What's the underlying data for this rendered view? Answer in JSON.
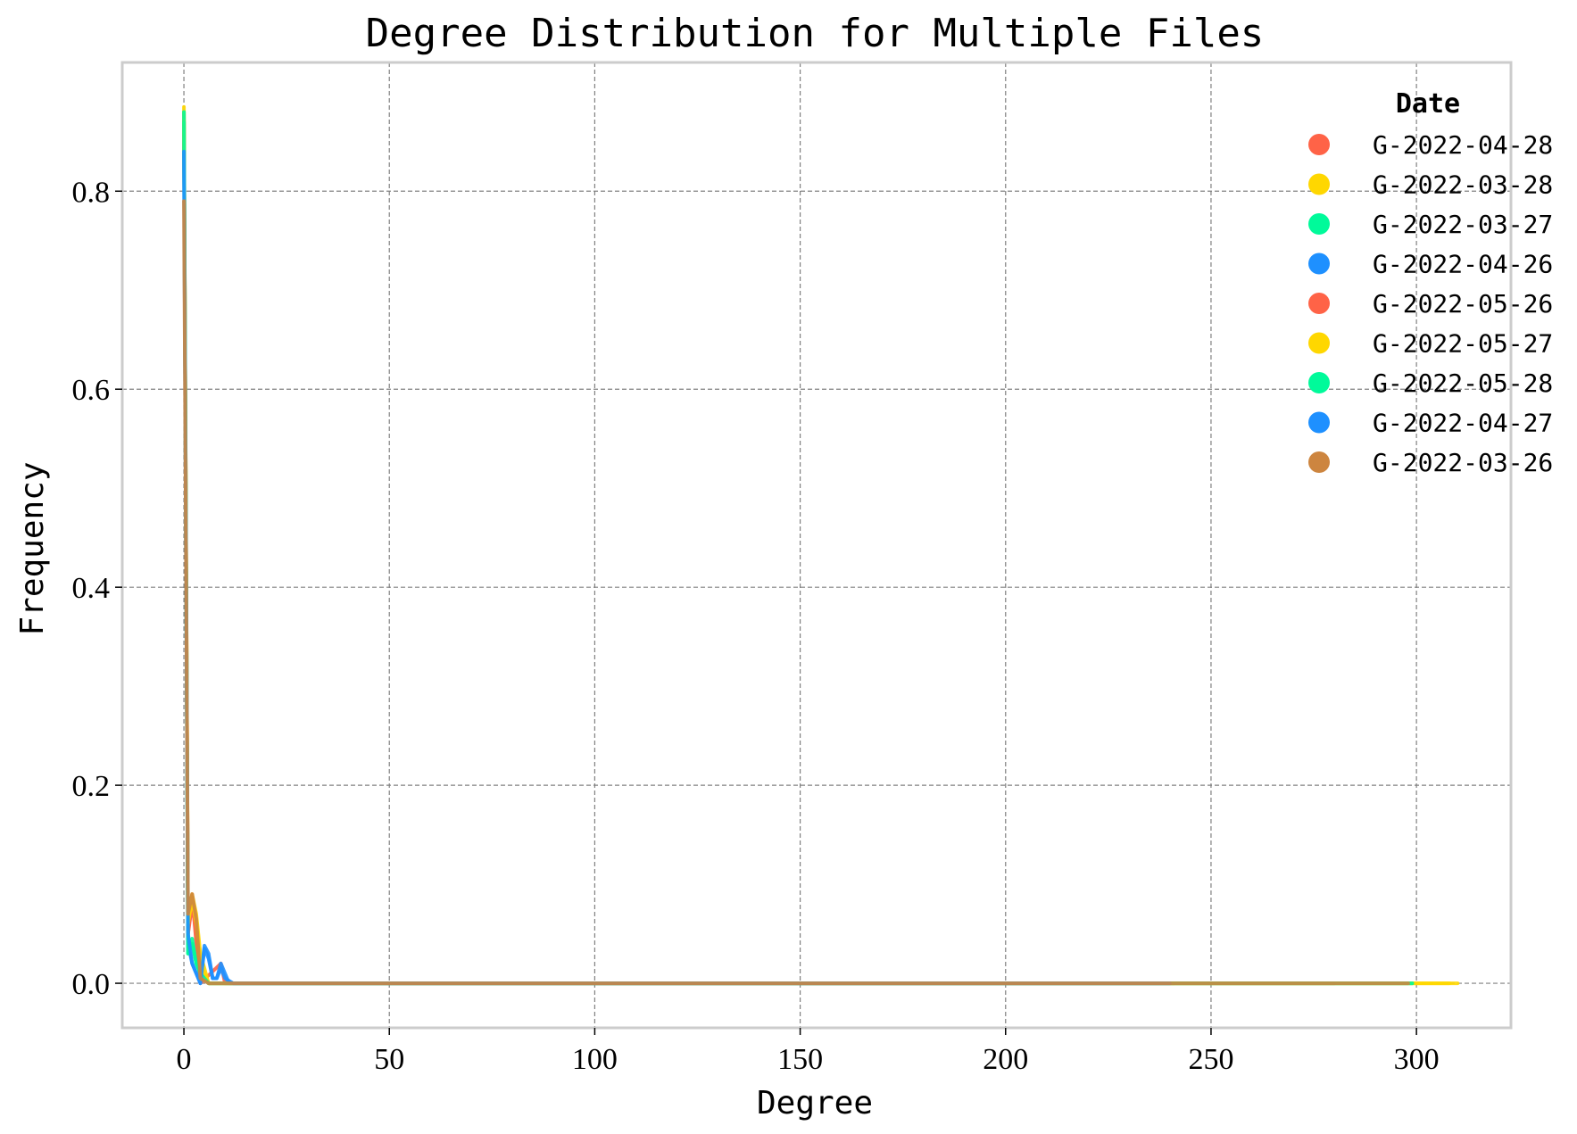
{
  "chart_data": {
    "type": "line",
    "title": "Degree Distribution for Multiple Files",
    "xlabel": "Degree",
    "ylabel": "Frequency",
    "xlim": [
      -15,
      323
    ],
    "ylim": [
      -0.045,
      0.93
    ],
    "xticks": [
      0,
      50,
      100,
      150,
      200,
      250,
      300
    ],
    "yticks": [
      0.0,
      0.2,
      0.4,
      0.6,
      0.8
    ],
    "xtick_labels": [
      "0",
      "50",
      "100",
      "150",
      "200",
      "250",
      "300"
    ],
    "ytick_labels": [
      "0.0",
      "0.2",
      "0.4",
      "0.6",
      "0.8"
    ],
    "grid": true,
    "legend": {
      "title": "Date",
      "position": "top-right"
    },
    "series": [
      {
        "name": "G-2022-04-28",
        "color": "#FF6347",
        "x": [
          0,
          1,
          2,
          3,
          4,
          9,
          10,
          12,
          60,
          120,
          200,
          241
        ],
        "y": [
          0.88,
          0.05,
          0.09,
          0.04,
          0.0,
          0.02,
          0.0,
          0.0,
          0.0,
          0.0,
          0.0,
          0.0
        ]
      },
      {
        "name": "G-2022-03-28",
        "color": "#FFD700",
        "x": [
          0,
          1,
          2,
          3,
          4,
          6,
          20,
          100,
          200,
          300,
          310
        ],
        "y": [
          0.885,
          0.06,
          0.09,
          0.07,
          0.03,
          0.0,
          0.0,
          0.0,
          0.0,
          0.0,
          0.0
        ]
      },
      {
        "name": "G-2022-03-27",
        "color": "#00FA9A",
        "x": [
          0,
          1,
          2,
          3,
          4,
          6,
          20,
          100,
          200,
          299
        ],
        "y": [
          0.88,
          0.03,
          0.045,
          0.02,
          0.01,
          0.0,
          0.0,
          0.0,
          0.0,
          0.0
        ]
      },
      {
        "name": "G-2022-04-26",
        "color": "#1E90FF",
        "x": [
          0,
          1,
          2,
          3,
          4,
          5,
          6,
          7,
          8,
          9,
          10,
          11,
          12,
          30,
          100,
          200,
          240
        ],
        "y": [
          0.85,
          0.04,
          0.02,
          0.01,
          0.0,
          0.038,
          0.03,
          0.005,
          0.005,
          0.02,
          0.01,
          0.0,
          0.0,
          0.0,
          0.0,
          0.0,
          0.0
        ]
      },
      {
        "name": "G-2022-05-26",
        "color": "#FF6347",
        "x": [
          0,
          1,
          2,
          3,
          4,
          6,
          20,
          100,
          200,
          280
        ],
        "y": [
          0.87,
          0.05,
          0.08,
          0.05,
          0.01,
          0.0,
          0.0,
          0.0,
          0.0,
          0.0
        ]
      },
      {
        "name": "G-2022-05-27",
        "color": "#FFD700",
        "x": [
          0,
          1,
          2,
          3,
          4,
          6,
          20,
          100,
          200,
          300,
          308
        ],
        "y": [
          0.87,
          0.06,
          0.085,
          0.06,
          0.02,
          0.0,
          0.0,
          0.0,
          0.0,
          0.0,
          0.0
        ]
      },
      {
        "name": "G-2022-05-28",
        "color": "#00FA9A",
        "x": [
          0,
          1,
          2,
          3,
          4,
          6,
          20,
          100,
          200,
          299
        ],
        "y": [
          0.87,
          0.03,
          0.04,
          0.02,
          0.01,
          0.0,
          0.0,
          0.0,
          0.0,
          0.0
        ]
      },
      {
        "name": "G-2022-04-27",
        "color": "#1E90FF",
        "x": [
          0,
          1,
          2,
          3,
          4,
          5,
          6,
          7,
          8,
          9,
          10,
          12,
          30,
          100,
          200,
          240
        ],
        "y": [
          0.84,
          0.05,
          0.02,
          0.01,
          0.0,
          0.035,
          0.025,
          0.005,
          0.005,
          0.015,
          0.005,
          0.0,
          0.0,
          0.0,
          0.0,
          0.0
        ]
      },
      {
        "name": "G-2022-03-26",
        "color": "#CD853F",
        "x": [
          0,
          1,
          2,
          3,
          4,
          6,
          20,
          100,
          200,
          298
        ],
        "y": [
          0.79,
          0.07,
          0.09,
          0.065,
          0.005,
          0.0,
          0.0,
          0.0,
          0.0,
          0.0
        ]
      }
    ]
  }
}
